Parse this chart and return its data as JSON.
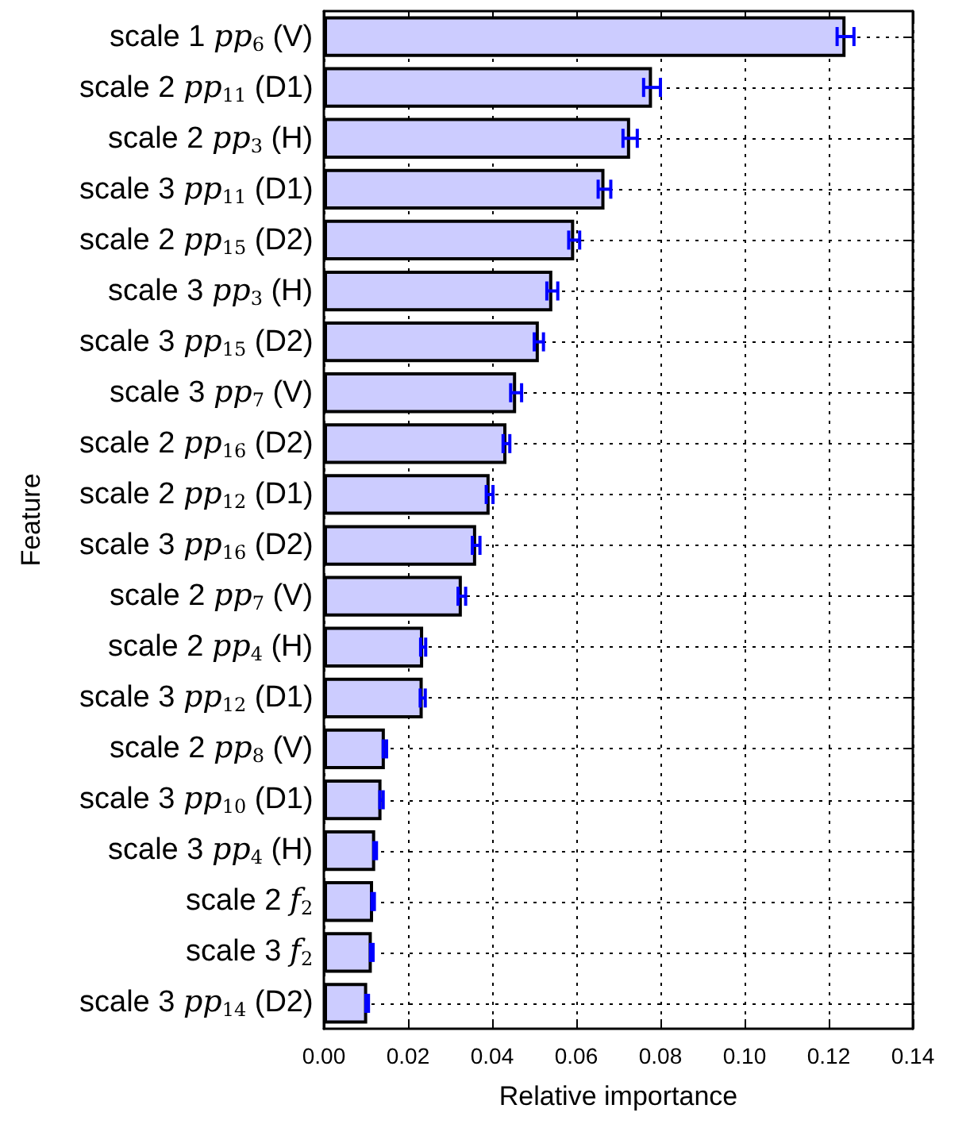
{
  "chart_data": {
    "type": "bar",
    "orientation": "horizontal",
    "xlabel": "Relative importance",
    "ylabel": "Feature",
    "categories": [
      "scale 1 pp$_{6}$ (V)",
      "scale 2 pp$_{11}$ (D1)",
      "scale 2 pp$_{3}$ (H)",
      "scale 3 pp$_{11}$ (D1)",
      "scale 2 pp$_{15}$ (D2)",
      "scale 3 pp$_{3}$ (H)",
      "scale 3 pp$_{15}$ (D2)",
      "scale 3 pp$_{7}$ (V)",
      "scale 2 pp$_{16}$ (D2)",
      "scale 2 pp$_{12}$ (D1)",
      "scale 3 pp$_{16}$ (D2)",
      "scale 2 pp$_{7}$ (V)",
      "scale 2 pp$_{4}$ (H)",
      "scale 3 pp$_{12}$ (D1)",
      "scale 2 pp$_{8}$ (V)",
      "scale 3 pp$_{10}$ (D1)",
      "scale 3 pp$_{4}$ (H)",
      "scale 2 f$_{2}$",
      "scale 3 f$_{2}$",
      "scale 3 pp$_{14}$ (D2)"
    ],
    "values": [
      0.124,
      0.078,
      0.0728,
      0.0667,
      0.0595,
      0.0543,
      0.0511,
      0.0457,
      0.0434,
      0.0394,
      0.0362,
      0.0328,
      0.0236,
      0.0235,
      0.0145,
      0.0137,
      0.0122,
      0.0117,
      0.0114,
      0.0103
    ],
    "errors": [
      0.002,
      0.002,
      0.0017,
      0.0015,
      0.0013,
      0.0013,
      0.0011,
      0.0013,
      0.0008,
      0.0008,
      0.0009,
      0.0009,
      0.0006,
      0.0006,
      0.0004,
      0.0004,
      0.0003,
      0.0003,
      0.0003,
      0.0003
    ],
    "color": "#ccccff",
    "xlim": [
      0,
      0.14
    ],
    "xticks": [
      {
        "value": 0,
        "label": "0.00"
      },
      {
        "value": 0.02,
        "label": "0.02"
      },
      {
        "value": 0.04,
        "label": "0.04"
      },
      {
        "value": 0.06,
        "label": "0.06"
      },
      {
        "value": 0.08,
        "label": "0.08"
      },
      {
        "value": 0.1,
        "label": "0.10"
      },
      {
        "value": 0.12,
        "label": "0.12"
      },
      {
        "value": 0.14,
        "label": "0.14"
      }
    ],
    "grid": true
  }
}
